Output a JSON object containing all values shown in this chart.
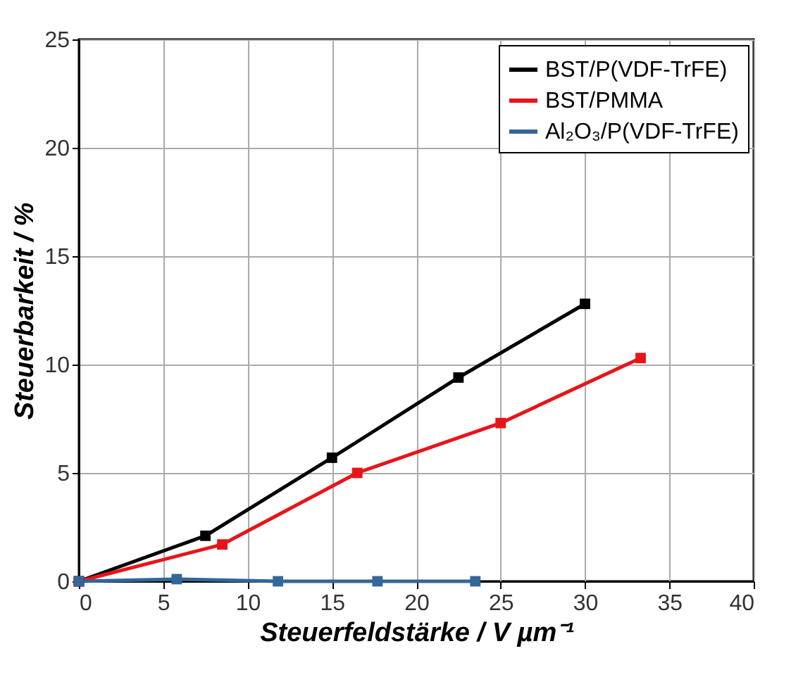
{
  "chart_data": {
    "type": "line",
    "xlabel": "Steuerfeldstärke / V µm⁻¹",
    "ylabel": "Steuerbarkeit / %",
    "series": [
      {
        "name": "BST/P(VDF-TrFE)",
        "color": "#000000",
        "x": [
          0,
          7.5,
          15,
          22.5,
          30
        ],
        "values": [
          0,
          2.1,
          5.7,
          9.4,
          12.8
        ]
      },
      {
        "name": "BST/PMMA",
        "color": "#e8141a",
        "x": [
          0,
          8.5,
          16.5,
          25,
          33.3
        ],
        "values": [
          0,
          1.7,
          5.0,
          7.3,
          10.3
        ]
      },
      {
        "name": "Al₂O₃/P(VDF-TrFE)",
        "color": "#336699",
        "x": [
          0,
          5.8,
          11.8,
          17.7,
          23.5
        ],
        "values": [
          0,
          0.1,
          0,
          0,
          0
        ]
      }
    ],
    "xlim": [
      0,
      40
    ],
    "xticks": [
      0,
      5,
      10,
      15,
      20,
      25,
      30,
      35,
      40
    ],
    "ylim": [
      0,
      25
    ],
    "yticks": [
      0,
      5,
      10,
      15,
      20,
      25
    ],
    "grid": true,
    "legend": "top right",
    "marker": "square",
    "line_style": "solid"
  }
}
